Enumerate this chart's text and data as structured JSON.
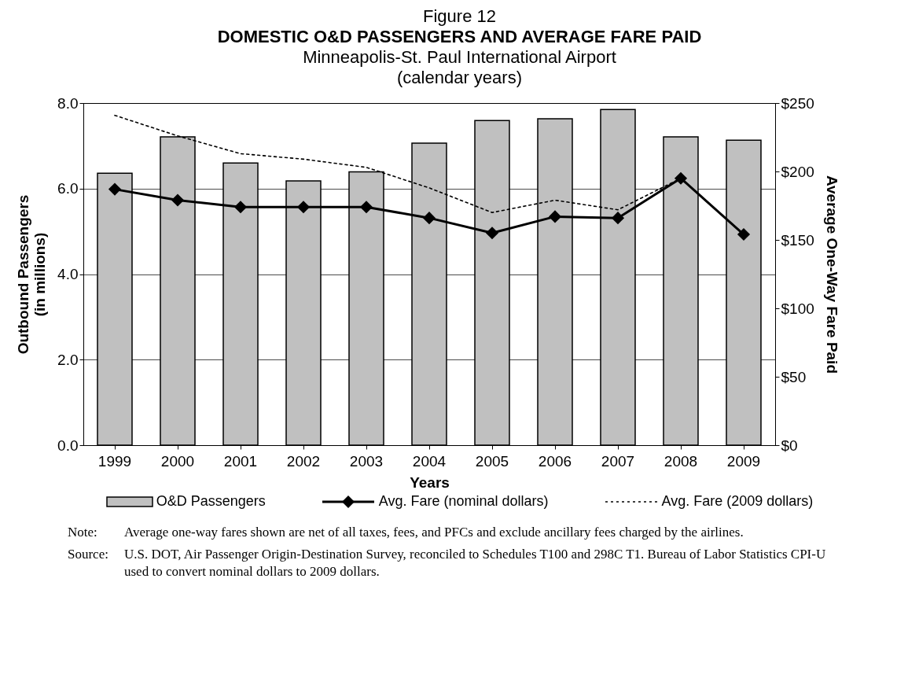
{
  "chart_data": {
    "type": "bar",
    "title": "DOMESTIC O&D PASSENGERS AND AVERAGE FARE PAID",
    "subtitle": "Minneapolis-St. Paul International Airport\n(calendar years)",
    "xlabel": "Years",
    "ylabel": "Outbound Passengers\n(in millions)",
    "y2label": "Average One-Way Fare Paid",
    "categories": [
      "1999",
      "2000",
      "2001",
      "2002",
      "2003",
      "2004",
      "2005",
      "2006",
      "2007",
      "2008",
      "2009"
    ],
    "series": [
      {
        "name": "O&D Passengers",
        "color": "#c0c0c0",
        "values": [
          6.36,
          7.21,
          6.6,
          6.18,
          6.39,
          7.06,
          7.59,
          7.63,
          7.85,
          7.21,
          7.13
        ]
      },
      {
        "name": "Avg. Fare (nominal dollars)",
        "type": "line",
        "axis": "y2",
        "color": "#000000",
        "marker": "diamond",
        "line_style": "solid",
        "values": [
          187,
          179,
          174,
          174,
          174,
          166,
          155,
          167,
          166,
          195,
          154
        ]
      },
      {
        "name": "Avg. Fare (2009 dollars)",
        "type": "line",
        "axis": "y2",
        "color": "#000000",
        "marker": "none",
        "line_style": "dotted",
        "values": [
          241,
          226,
          213,
          209,
          203,
          188,
          170,
          179,
          172,
          195,
          154
        ]
      }
    ],
    "ylim": [
      0,
      8
    ],
    "yticks": [
      {
        "value": 0,
        "label": "0.0"
      },
      {
        "value": 2,
        "label": "2.0"
      },
      {
        "value": 4,
        "label": "4.0"
      },
      {
        "value": 6,
        "label": "6.0"
      },
      {
        "value": 8,
        "label": "8.0"
      }
    ],
    "y2lim": [
      0,
      250
    ],
    "y2ticks": [
      {
        "value": 0,
        "label": "$0"
      },
      {
        "value": 50,
        "label": "$50"
      },
      {
        "value": 100,
        "label": "$100"
      },
      {
        "value": 150,
        "label": "$150"
      },
      {
        "value": 200,
        "label": "$200"
      },
      {
        "value": 250,
        "label": "$250"
      }
    ],
    "grid": "y",
    "legend": "bottom",
    "annotations": [
      "Figure 12",
      "Note: Average one-way fares shown are net of all taxes, fees, and PFCs and exclude ancillary fees charged by the airlines.",
      "Source: U.S. DOT, Air Passenger Origin-Destination Survey, reconciled to Schedules T100 and 298C T1. Bureau of Labor Statistics CPI-U used to convert nominal dollars to 2009 dollars."
    ]
  }
}
